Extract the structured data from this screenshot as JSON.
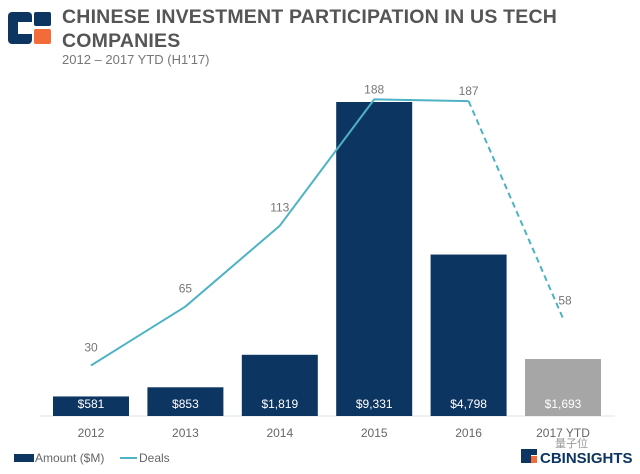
{
  "header": {
    "title": "CHINESE INVESTMENT PARTICIPATION IN US TECH COMPANIES",
    "subtitle": "2012 – 2017 YTD (H1'17)",
    "logo": "CB Insights logo"
  },
  "footer": {
    "brand": "CBINSIGHTS",
    "watermark": "量子位"
  },
  "colors": {
    "bar": "#0d3561",
    "bar_ytd": "#a6a6a6",
    "line": "#4db3c4",
    "logo_orange": "#f26b38"
  },
  "chart_data": {
    "type": "bar+line",
    "categories": [
      "2012",
      "2013",
      "2014",
      "2015",
      "2016",
      "2017 YTD"
    ],
    "series": [
      {
        "name": "Amount ($M)",
        "type": "bar",
        "values": [
          581,
          853,
          1819,
          9331,
          4798,
          1693
        ],
        "labels": [
          "$581",
          "$853",
          "$1,819",
          "$9,331",
          "$4,798",
          "$1,693"
        ]
      },
      {
        "name": "Deals",
        "type": "line",
        "values": [
          30,
          65,
          113,
          188,
          187,
          58
        ],
        "labels": [
          "30",
          "65",
          "113",
          "188",
          "187",
          "58"
        ],
        "dashed_last_segment": true
      }
    ],
    "legend": "bottom-left",
    "grid": false
  }
}
